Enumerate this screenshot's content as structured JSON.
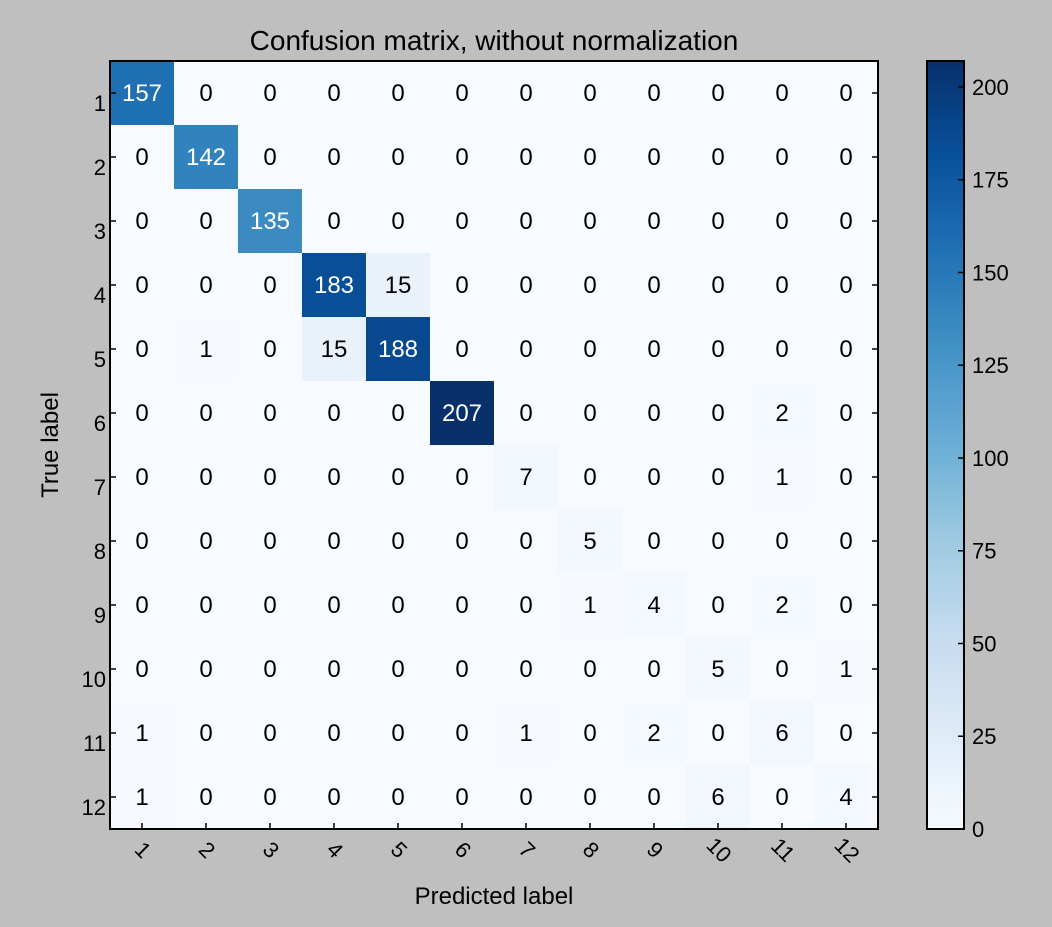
{
  "chart_data": {
    "type": "heatmap",
    "title": "Confusion matrix, without normalization",
    "xlabel": "Predicted label",
    "ylabel": "True label",
    "x_categories": [
      "1",
      "2",
      "3",
      "4",
      "5",
      "6",
      "7",
      "8",
      "9",
      "10",
      "11",
      "12"
    ],
    "y_categories": [
      "1",
      "2",
      "3",
      "4",
      "5",
      "6",
      "7",
      "8",
      "9",
      "10",
      "11",
      "12"
    ],
    "matrix": [
      [
        157,
        0,
        0,
        0,
        0,
        0,
        0,
        0,
        0,
        0,
        0,
        0
      ],
      [
        0,
        142,
        0,
        0,
        0,
        0,
        0,
        0,
        0,
        0,
        0,
        0
      ],
      [
        0,
        0,
        135,
        0,
        0,
        0,
        0,
        0,
        0,
        0,
        0,
        0
      ],
      [
        0,
        0,
        0,
        183,
        15,
        0,
        0,
        0,
        0,
        0,
        0,
        0
      ],
      [
        0,
        1,
        0,
        15,
        188,
        0,
        0,
        0,
        0,
        0,
        0,
        0
      ],
      [
        0,
        0,
        0,
        0,
        0,
        207,
        0,
        0,
        0,
        0,
        2,
        0
      ],
      [
        0,
        0,
        0,
        0,
        0,
        0,
        7,
        0,
        0,
        0,
        1,
        0
      ],
      [
        0,
        0,
        0,
        0,
        0,
        0,
        0,
        5,
        0,
        0,
        0,
        0
      ],
      [
        0,
        0,
        0,
        0,
        0,
        0,
        0,
        1,
        4,
        0,
        2,
        0
      ],
      [
        0,
        0,
        0,
        0,
        0,
        0,
        0,
        0,
        0,
        5,
        0,
        1
      ],
      [
        1,
        0,
        0,
        0,
        0,
        0,
        1,
        0,
        2,
        0,
        6,
        0
      ],
      [
        1,
        0,
        0,
        0,
        0,
        0,
        0,
        0,
        0,
        6,
        0,
        4
      ]
    ],
    "colorbar": {
      "min": 0,
      "max": 207,
      "ticks": [
        0,
        25,
        50,
        75,
        100,
        125,
        150,
        175,
        200
      ],
      "colormap": "Blues",
      "low_color": "#f7fbff",
      "high_color": "#08306b"
    },
    "grid": false,
    "legend": "none"
  }
}
